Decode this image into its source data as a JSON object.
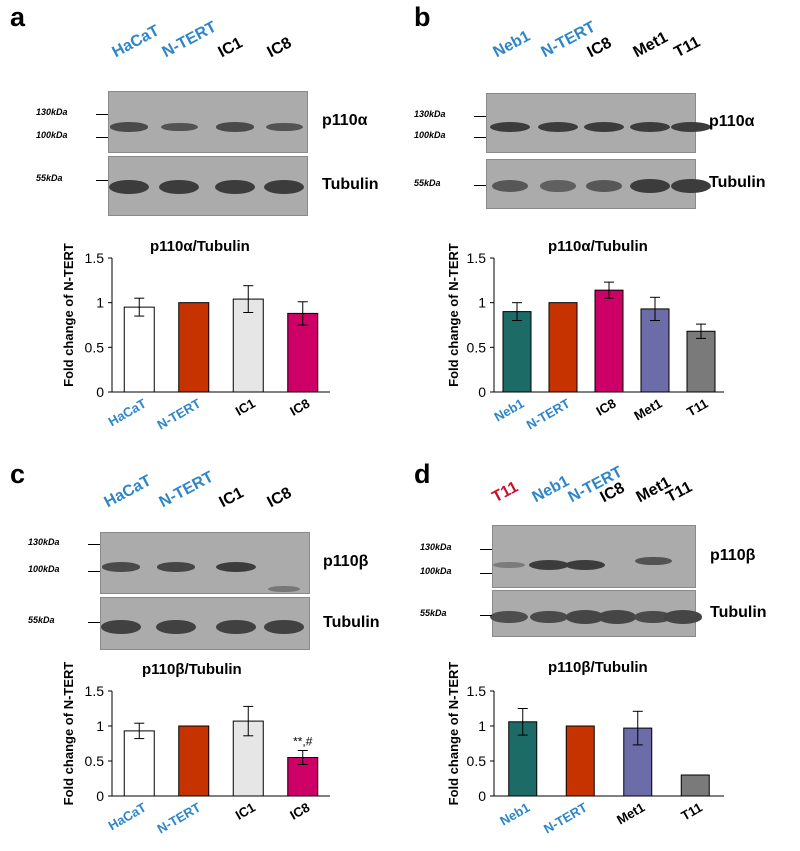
{
  "panels": {
    "a": {
      "label": "a",
      "lanes": [
        {
          "name": "HaCaT",
          "color": "#2e86c8"
        },
        {
          "name": "N-TERT",
          "color": "#2e86c8"
        },
        {
          "name": "IC1",
          "color": "#000000"
        },
        {
          "name": "IC8",
          "color": "#000000"
        }
      ],
      "blot1": {
        "protein": "p110α",
        "markers": [
          "130kDa",
          "100kDa"
        ],
        "intensity": [
          0.85,
          0.75,
          0.85,
          0.75
        ]
      },
      "blot2": {
        "protein": "Tubulin",
        "markers": [
          "55kDa"
        ],
        "intensity": [
          1,
          1,
          1,
          1
        ]
      },
      "chart_title": "p110α/Tubulin"
    },
    "b": {
      "label": "b",
      "lanes": [
        {
          "name": "Neb1",
          "color": "#2e86c8"
        },
        {
          "name": "N-TERT",
          "color": "#2e86c8"
        },
        {
          "name": "IC8",
          "color": "#000000"
        },
        {
          "name": "Met1",
          "color": "#000000"
        },
        {
          "name": "T11",
          "color": "#000000"
        }
      ],
      "blot1": {
        "protein": "p110α",
        "markers": [
          "130kDa",
          "100kDa"
        ],
        "intensity": [
          1,
          1,
          1,
          1,
          1
        ]
      },
      "blot2": {
        "protein": "Tubulin",
        "markers": [
          "55kDa"
        ],
        "intensity": [
          0.7,
          0.6,
          0.7,
          1,
          1
        ]
      },
      "chart_title": "p110α/Tubulin"
    },
    "c": {
      "label": "c",
      "lanes": [
        {
          "name": "HaCaT",
          "color": "#2e86c8"
        },
        {
          "name": "N-TERT",
          "color": "#2e86c8"
        },
        {
          "name": "IC1",
          "color": "#000000"
        },
        {
          "name": "IC8",
          "color": "#000000"
        }
      ],
      "blot1": {
        "protein": "p110β",
        "markers": [
          "130kDa",
          "100kDa"
        ],
        "intensity": [
          0.85,
          0.9,
          1,
          0.35
        ]
      },
      "blot2": {
        "protein": "Tubulin",
        "markers": [
          "55kDa"
        ],
        "intensity": [
          0.95,
          0.95,
          0.95,
          0.95
        ]
      },
      "chart_title": "p110β/Tubulin"
    },
    "d": {
      "label": "d",
      "lanes": [
        {
          "name": "T11",
          "color": "#c8102e"
        },
        {
          "name": "Neb1",
          "color": "#2e86c8"
        },
        {
          "name": "N-TERT",
          "color": "#2e86c8"
        },
        {
          "name": "IC8",
          "color": "#000000"
        },
        {
          "name": "Met1",
          "color": "#000000"
        },
        {
          "name": "T11",
          "color": "#000000"
        }
      ],
      "blot1": {
        "protein": "p110β",
        "markers": [
          "130kDa",
          "100kDa"
        ],
        "intensity": [
          0.3,
          1,
          1,
          0,
          0.75,
          0
        ]
      },
      "blot2": {
        "protein": "Tubulin",
        "markers": [
          "55kDa"
        ],
        "intensity": [
          0.8,
          0.85,
          0.9,
          0.9,
          0.85,
          0.9
        ]
      },
      "chart_title": "p110β/Tubulin"
    }
  },
  "chart_data": [
    {
      "panel": "a",
      "type": "bar",
      "title": "p110α/Tubulin",
      "xlabel": "",
      "ylabel": "Fold change of N-TERT",
      "categories": [
        "HaCaT",
        "N-TERT",
        "IC1",
        "IC8"
      ],
      "category_colors": [
        "#2e86c8",
        "#2e86c8",
        "#000000",
        "#000000"
      ],
      "values": [
        0.95,
        1.0,
        1.04,
        0.88
      ],
      "errors": [
        0.1,
        0,
        0.15,
        0.13
      ],
      "bar_colors": [
        "#ffffff",
        "#c63300",
        "#e6e6e6",
        "#cc0066"
      ],
      "ylim": [
        0,
        1.5
      ],
      "yticks": [
        "0",
        "0.5",
        "1",
        "1.5"
      ],
      "annotations": [
        "",
        "",
        "",
        ""
      ]
    },
    {
      "panel": "b",
      "type": "bar",
      "title": "p110α/Tubulin",
      "xlabel": "",
      "ylabel": "Fold change of N-TERT",
      "categories": [
        "Neb1",
        "N-TERT",
        "IC8",
        "Met1",
        "T11"
      ],
      "category_colors": [
        "#2e86c8",
        "#2e86c8",
        "#000000",
        "#000000",
        "#000000"
      ],
      "values": [
        0.9,
        1.0,
        1.14,
        0.93,
        0.68
      ],
      "errors": [
        0.1,
        0,
        0.09,
        0.13,
        0.08
      ],
      "bar_colors": [
        "#1d6b67",
        "#c63300",
        "#cc0066",
        "#6c6ca8",
        "#7a7a7a"
      ],
      "ylim": [
        0,
        1.5
      ],
      "yticks": [
        "0",
        "0.5",
        "1",
        "1.5"
      ],
      "annotations": [
        "",
        "",
        "",
        "",
        ""
      ]
    },
    {
      "panel": "c",
      "type": "bar",
      "title": "p110β/Tubulin",
      "xlabel": "",
      "ylabel": "Fold change of N-TERT",
      "categories": [
        "HaCaT",
        "N-TERT",
        "IC1",
        "IC8"
      ],
      "category_colors": [
        "#2e86c8",
        "#2e86c8",
        "#000000",
        "#000000"
      ],
      "values": [
        0.93,
        1.0,
        1.07,
        0.55
      ],
      "errors": [
        0.11,
        0,
        0.21,
        0.1
      ],
      "bar_colors": [
        "#ffffff",
        "#c63300",
        "#e6e6e6",
        "#cc0066"
      ],
      "ylim": [
        0,
        1.5
      ],
      "yticks": [
        "0",
        "0.5",
        "1",
        "1.5"
      ],
      "annotations": [
        "",
        "",
        "",
        "**,#"
      ]
    },
    {
      "panel": "d",
      "type": "bar",
      "title": "p110β/Tubulin",
      "xlabel": "",
      "ylabel": "Fold change of N-TERT",
      "categories": [
        "Neb1",
        "N-TERT",
        "Met1",
        "T11"
      ],
      "category_colors": [
        "#2e86c8",
        "#2e86c8",
        "#000000",
        "#000000"
      ],
      "values": [
        1.06,
        1.0,
        0.97,
        0.3
      ],
      "errors": [
        0.19,
        0,
        0.24,
        0
      ],
      "bar_colors": [
        "#1d6b67",
        "#c63300",
        "#6c6ca8",
        "#7a7a7a"
      ],
      "ylim": [
        0,
        1.5
      ],
      "yticks": [
        "0",
        "0.5",
        "1",
        "1.5"
      ],
      "annotations": [
        "",
        "",
        "",
        ""
      ]
    }
  ]
}
